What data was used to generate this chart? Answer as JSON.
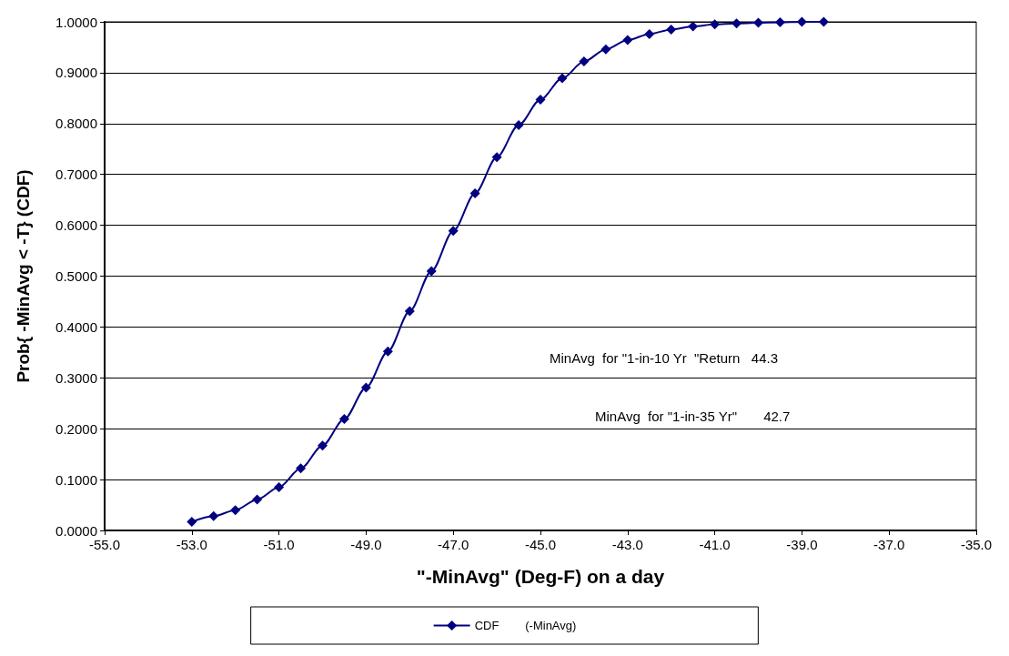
{
  "chart_data": {
    "type": "line",
    "xlabel": "\"-MinAvg\" (Deg-F) on a day",
    "ylabel": "Prob{ -MinAvg < -T} (CDF)",
    "x": [
      -53,
      -52.5,
      -52,
      -51.5,
      -51,
      -50.5,
      -50,
      -49.5,
      -49,
      -48.5,
      -48,
      -47.5,
      -47,
      -46.5,
      -46,
      -45.5,
      -45,
      -44.5,
      -44,
      -43.5,
      -43,
      -42.5,
      -42,
      -41.5,
      -41,
      -40.5,
      -40,
      -39.5,
      -39,
      -38.5
    ],
    "series": [
      {
        "name": "CDF        (-MinAvg)",
        "color": "#000080",
        "values": [
          0.017,
          0.028,
          0.04,
          0.061,
          0.085,
          0.122,
          0.167,
          0.219,
          0.281,
          0.352,
          0.431,
          0.51,
          0.589,
          0.663,
          0.734,
          0.797,
          0.847,
          0.889,
          0.922,
          0.946,
          0.964,
          0.976,
          0.985,
          0.991,
          0.995,
          0.997,
          0.998,
          0.999,
          1.0,
          1.0
        ]
      }
    ],
    "xlim": [
      -55,
      -35
    ],
    "xticks": [
      {
        "value": -55,
        "label": "-55.0"
      },
      {
        "value": -53,
        "label": "-53.0"
      },
      {
        "value": -51,
        "label": "-51.0"
      },
      {
        "value": -49,
        "label": "-49.0"
      },
      {
        "value": -47,
        "label": "-47.0"
      },
      {
        "value": -45,
        "label": "-45.0"
      },
      {
        "value": -43,
        "label": "-43.0"
      },
      {
        "value": -41,
        "label": "-41.0"
      },
      {
        "value": -39,
        "label": "-39.0"
      },
      {
        "value": -37,
        "label": "-37.0"
      },
      {
        "value": -35,
        "label": "-35.0"
      }
    ],
    "ylim": [
      0,
      1
    ],
    "yticks": [
      {
        "value": 0,
        "label": "0.0000"
      },
      {
        "value": 0.1,
        "label": "0.1000"
      },
      {
        "value": 0.2,
        "label": "0.2000"
      },
      {
        "value": 0.3,
        "label": "0.3000"
      },
      {
        "value": 0.4,
        "label": "0.4000"
      },
      {
        "value": 0.5,
        "label": "0.5000"
      },
      {
        "value": 0.6,
        "label": "0.6000"
      },
      {
        "value": 0.7,
        "label": "0.7000"
      },
      {
        "value": 0.8,
        "label": "0.8000"
      },
      {
        "value": 0.9,
        "label": "0.9000"
      },
      {
        "value": 1,
        "label": "1.0000"
      }
    ],
    "annotations": [
      "MinAvg  for \"1-in-10 Yr  \"Return   44.3",
      "MinAvg  for \"1-in-35 Yr\"       42.7"
    ],
    "grid": "y",
    "legend": "bottom",
    "marker": "diamond",
    "line_style": "solid"
  }
}
